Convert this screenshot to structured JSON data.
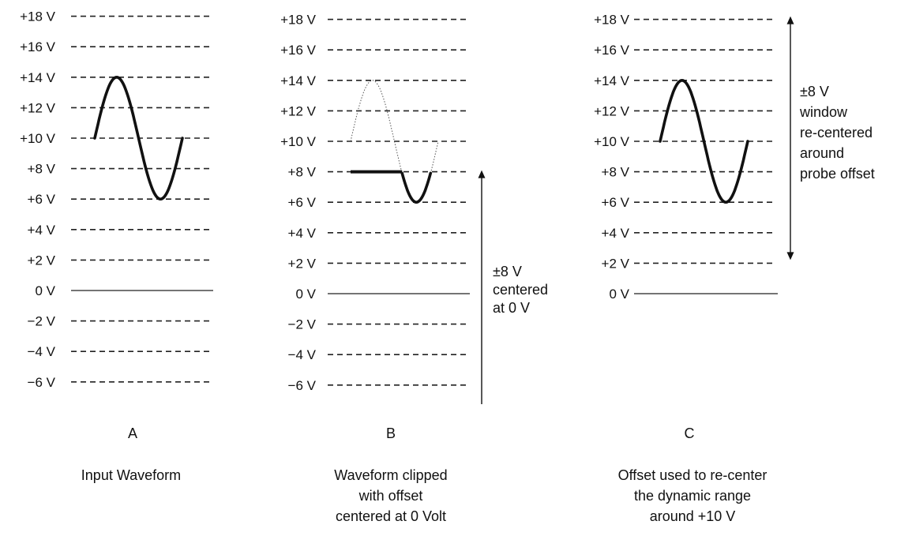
{
  "panels": [
    {
      "id": "A",
      "letter": "A",
      "caption": [
        "Input Waveform"
      ],
      "voltage_labels": [
        "+18 V",
        "+16 V",
        "+14 V",
        "+12 V",
        "+10 V",
        "+8 V",
        "+6 V",
        "+4 V",
        "+2 V",
        "0 V",
        "−2 V",
        "−4 V",
        "−6 V"
      ],
      "levels": [
        18,
        16,
        14,
        12,
        10,
        8,
        6,
        4,
        2,
        0,
        -2,
        -4,
        -6
      ],
      "waveform": {
        "offset_v": 10,
        "amplitude_v": 4,
        "visible": "full"
      }
    },
    {
      "id": "B",
      "letter": "B",
      "caption": [
        "Waveform clipped",
        "with offset",
        "centered at 0 Volt"
      ],
      "voltage_labels": [
        "+18 V",
        "+16 V",
        "+14 V",
        "+12 V",
        "+10 V",
        "+8 V",
        "+6 V",
        "+4 V",
        "+2 V",
        "0 V",
        "−2 V",
        "−4 V",
        "−6 V"
      ],
      "levels": [
        18,
        16,
        14,
        12,
        10,
        8,
        6,
        4,
        2,
        0,
        -2,
        -4,
        -6
      ],
      "waveform": {
        "offset_v": 10,
        "amplitude_v": 4,
        "clip_v": 8,
        "visible": "clipped"
      },
      "note": [
        "±8 V",
        "centered",
        "at 0 V"
      ]
    },
    {
      "id": "C",
      "letter": "C",
      "caption": [
        "Offset used to re-center",
        "the dynamic range",
        "around +10 V"
      ],
      "voltage_labels": [
        "+18 V",
        "+16 V",
        "+14 V",
        "+12 V",
        "+10 V",
        "+8 V",
        "+6 V",
        "+4 V",
        "+2 V",
        "0 V"
      ],
      "levels": [
        18,
        16,
        14,
        12,
        10,
        8,
        6,
        4,
        2,
        0
      ],
      "waveform": {
        "offset_v": 10,
        "amplitude_v": 4,
        "visible": "full"
      },
      "note": [
        "±8 V",
        "window",
        "re-centered",
        "around",
        "probe offset"
      ]
    }
  ]
}
